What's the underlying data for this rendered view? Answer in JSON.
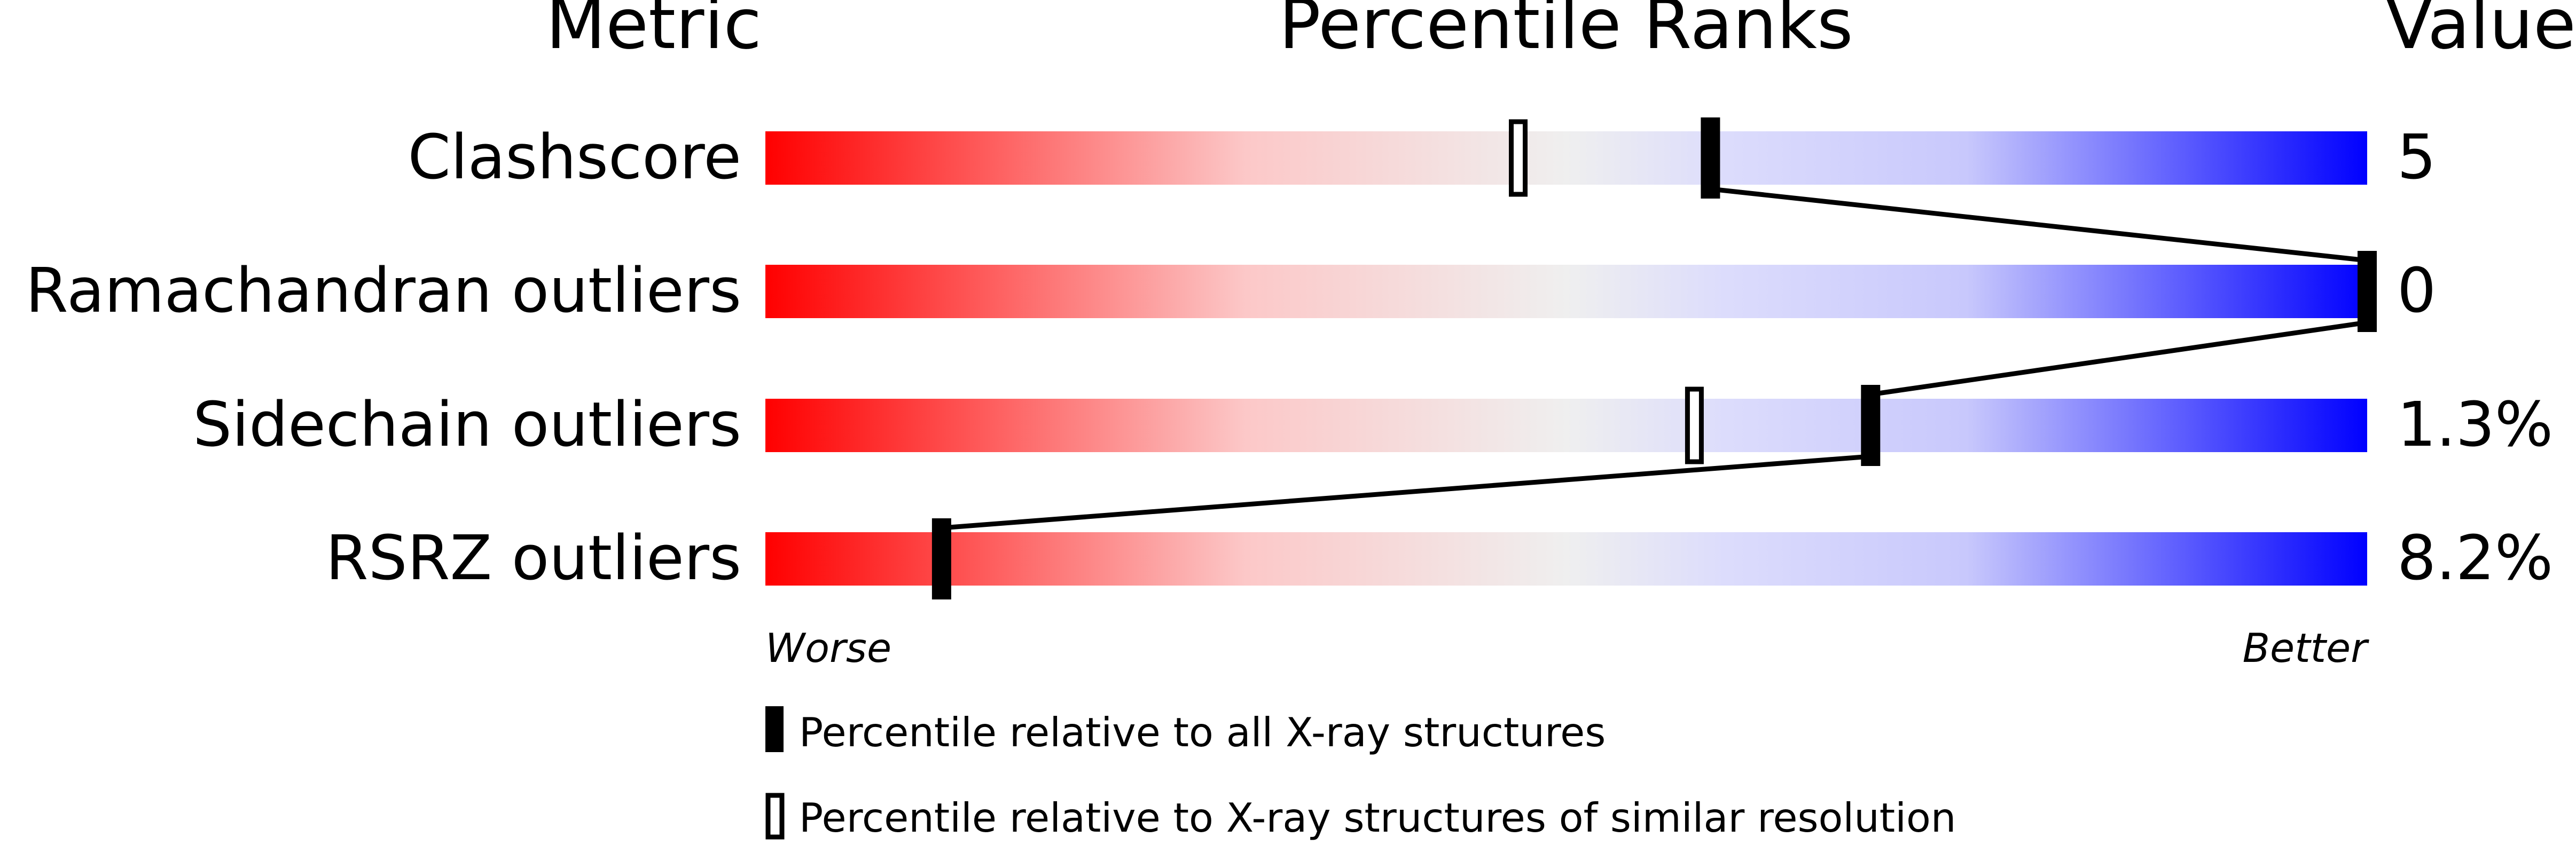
{
  "chart_data": {
    "type": "bar",
    "headers": {
      "metric": "Metric",
      "percentile": "Percentile Ranks",
      "value": "Value"
    },
    "xlim": [
      0,
      100
    ],
    "rows": [
      {
        "metric": "Clashscore",
        "value": "5",
        "percentile_all": 59,
        "percentile_similar": 47
      },
      {
        "metric": "Ramachandran outliers",
        "value": "0",
        "percentile_all": 100,
        "percentile_similar": null
      },
      {
        "metric": "Sidechain outliers",
        "value": "1.3%",
        "percentile_all": 69,
        "percentile_similar": 58
      },
      {
        "metric": "RSRZ outliers",
        "value": "8.2%",
        "percentile_all": 11,
        "percentile_similar": null
      }
    ],
    "axis_labels": {
      "left": "Worse",
      "right": "Better"
    },
    "legend": [
      {
        "marker": "filled",
        "label": "Percentile relative to all X-ray structures"
      },
      {
        "marker": "hollow",
        "label": "Percentile relative to X-ray structures of similar resolution"
      }
    ],
    "colors": {
      "worse": "#ff0000",
      "middle": "#f0f0f0",
      "better": "#0000ff",
      "marker": "#000000"
    }
  }
}
